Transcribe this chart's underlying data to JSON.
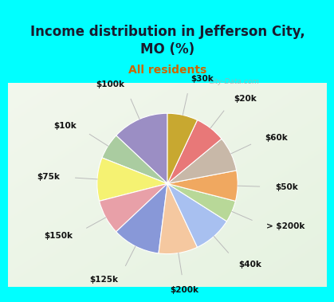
{
  "title": "Income distribution in Jefferson City,\nMO (%)",
  "subtitle": "All residents",
  "watermark": "City-Data.com",
  "bg_cyan": "#00FFFF",
  "bg_chart": "#d8ede0",
  "labels": [
    "$100k",
    "$10k",
    "$75k",
    "$150k",
    "$125k",
    "$200k",
    "$40k",
    "> $200k",
    "$50k",
    "$60k",
    "$20k",
    "$30k"
  ],
  "values": [
    13,
    6,
    10,
    8,
    11,
    9,
    9,
    5,
    7,
    8,
    7,
    7
  ],
  "colors": [
    "#9b8ec4",
    "#aacca0",
    "#f5f272",
    "#e8a0a8",
    "#8898d8",
    "#f5c8a0",
    "#a8c0f0",
    "#b8d898",
    "#f0a860",
    "#c8b8a8",
    "#e87878",
    "#c8a830"
  ],
  "title_fontsize": 12,
  "subtitle_fontsize": 10,
  "label_fontsize": 7.5,
  "startangle": 90
}
